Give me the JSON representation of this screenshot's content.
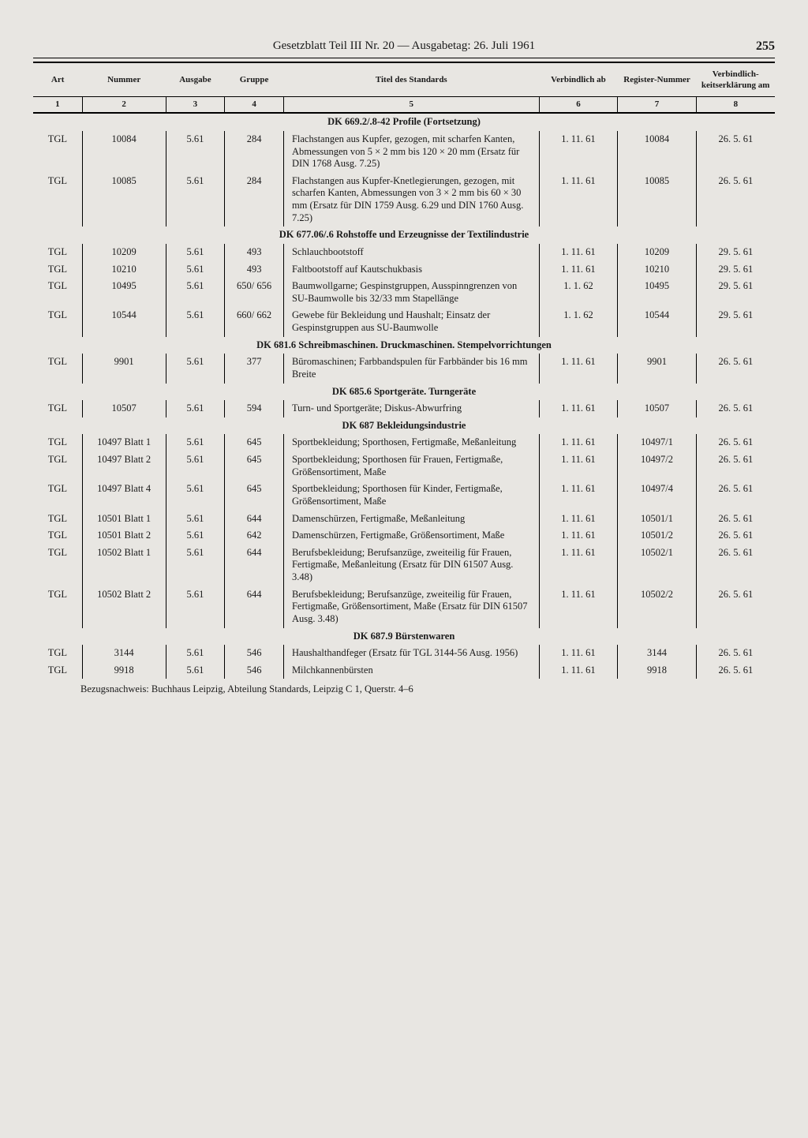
{
  "header": {
    "title": "Gesetzblatt Teil III Nr. 20 — Ausgabetag: 26. Juli 1961",
    "page_number": "255"
  },
  "columns": {
    "h1": "Art",
    "h2": "Nummer",
    "h3": "Ausgabe",
    "h4": "Gruppe",
    "h5": "Titel des Standards",
    "h6": "Verbindlich ab",
    "h7": "Register-Nummer",
    "h8": "Verbindlich-keitserklärung am",
    "n1": "1",
    "n2": "2",
    "n3": "3",
    "n4": "4",
    "n5": "5",
    "n6": "6",
    "n7": "7",
    "n8": "8"
  },
  "sections": [
    {
      "heading": "DK 669.2/.8-42 Profile (Fortsetzung)",
      "rows": [
        {
          "art": "TGL",
          "num": "10084",
          "ausg": "5.61",
          "grp": "284",
          "title": "Flachstangen aus Kupfer, gezogen, mit scharfen Kanten, Abmessungen von 5 × 2 mm bis 120 × 20 mm (Ersatz für DIN 1768 Ausg. 7.25)",
          "verb": "1. 11. 61",
          "reg": "10084",
          "am": "26. 5. 61"
        },
        {
          "art": "TGL",
          "num": "10085",
          "ausg": "5.61",
          "grp": "284",
          "title": "Flachstangen aus Kupfer-Knetlegierungen, gezogen, mit scharfen Kanten, Abmessungen von 3 × 2 mm bis 60 × 30 mm (Ersatz für DIN 1759 Ausg. 6.29 und DIN 1760 Ausg. 7.25)",
          "verb": "1. 11. 61",
          "reg": "10085",
          "am": "26. 5. 61"
        }
      ]
    },
    {
      "heading": "DK 677.06/.6 Rohstoffe und Erzeugnisse der Textilindustrie",
      "rows": [
        {
          "art": "TGL",
          "num": "10209",
          "ausg": "5.61",
          "grp": "493",
          "title": "Schlauchbootstoff",
          "verb": "1. 11. 61",
          "reg": "10209",
          "am": "29. 5. 61"
        },
        {
          "art": "TGL",
          "num": "10210",
          "ausg": "5.61",
          "grp": "493",
          "title": "Faltbootstoff auf Kautschukbasis",
          "verb": "1. 11. 61",
          "reg": "10210",
          "am": "29. 5. 61"
        },
        {
          "art": "TGL",
          "num": "10495",
          "ausg": "5.61",
          "grp": "650/ 656",
          "title": "Baumwollgarne; Gespinstgruppen, Ausspinngrenzen von SU-Baumwolle bis 32/33 mm Stapellänge",
          "verb": "1. 1. 62",
          "reg": "10495",
          "am": "29. 5. 61"
        },
        {
          "art": "TGL",
          "num": "10544",
          "ausg": "5.61",
          "grp": "660/ 662",
          "title": "Gewebe für Bekleidung und Haushalt; Einsatz der Gespinstgruppen aus SU-Baumwolle",
          "verb": "1. 1. 62",
          "reg": "10544",
          "am": "29. 5. 61"
        }
      ]
    },
    {
      "heading": "DK 681.6 Schreibmaschinen. Druckmaschinen. Stempelvorrichtungen",
      "rows": [
        {
          "art": "TGL",
          "num": "9901",
          "ausg": "5.61",
          "grp": "377",
          "title": "Büromaschinen; Farbbandspulen für Farbbänder bis 16 mm Breite",
          "verb": "1. 11. 61",
          "reg": "9901",
          "am": "26. 5. 61"
        }
      ]
    },
    {
      "heading": "DK 685.6 Sportgeräte. Turngeräte",
      "rows": [
        {
          "art": "TGL",
          "num": "10507",
          "ausg": "5.61",
          "grp": "594",
          "title": "Turn- und Sportgeräte; Diskus-Abwurfring",
          "verb": "1. 11. 61",
          "reg": "10507",
          "am": "26. 5. 61"
        }
      ]
    },
    {
      "heading": "DK 687 Bekleidungsindustrie",
      "rows": [
        {
          "art": "TGL",
          "num": "10497 Blatt 1",
          "ausg": "5.61",
          "grp": "645",
          "title": "Sportbekleidung; Sporthosen, Fertigmaße, Meßanleitung",
          "verb": "1. 11. 61",
          "reg": "10497/1",
          "am": "26. 5. 61"
        },
        {
          "art": "TGL",
          "num": "10497 Blatt 2",
          "ausg": "5.61",
          "grp": "645",
          "title": "Sportbekleidung; Sporthosen für Frauen, Fertigmaße, Größensortiment, Maße",
          "verb": "1. 11. 61",
          "reg": "10497/2",
          "am": "26. 5. 61"
        },
        {
          "art": "TGL",
          "num": "10497 Blatt 4",
          "ausg": "5.61",
          "grp": "645",
          "title": "Sportbekleidung; Sporthosen für Kinder, Fertigmaße, Größensortiment, Maße",
          "verb": "1. 11. 61",
          "reg": "10497/4",
          "am": "26. 5. 61"
        },
        {
          "art": "TGL",
          "num": "10501 Blatt 1",
          "ausg": "5.61",
          "grp": "644",
          "title": "Damenschürzen, Fertigmaße, Meßanleitung",
          "verb": "1. 11. 61",
          "reg": "10501/1",
          "am": "26. 5. 61"
        },
        {
          "art": "TGL",
          "num": "10501 Blatt 2",
          "ausg": "5.61",
          "grp": "642",
          "title": "Damenschürzen, Fertigmaße, Größensortiment, Maße",
          "verb": "1. 11. 61",
          "reg": "10501/2",
          "am": "26. 5. 61"
        },
        {
          "art": "TGL",
          "num": "10502 Blatt 1",
          "ausg": "5.61",
          "grp": "644",
          "title": "Berufsbekleidung; Berufsanzüge, zweiteilig für Frauen, Fertigmaße, Meßanleitung (Ersatz für DIN 61507 Ausg. 3.48)",
          "verb": "1. 11. 61",
          "reg": "10502/1",
          "am": "26. 5. 61"
        },
        {
          "art": "TGL",
          "num": "10502 Blatt 2",
          "ausg": "5.61",
          "grp": "644",
          "title": "Berufsbekleidung; Berufsanzüge, zweiteilig für Frauen, Fertigmaße, Größensortiment, Maße (Ersatz für DIN 61507 Ausg. 3.48)",
          "verb": "1. 11. 61",
          "reg": "10502/2",
          "am": "26. 5. 61"
        }
      ]
    },
    {
      "heading": "DK 687.9 Bürstenwaren",
      "rows": [
        {
          "art": "TGL",
          "num": "3144",
          "ausg": "5.61",
          "grp": "546",
          "title": "Haushalthandfeger (Ersatz für TGL 3144-56 Ausg. 1956)",
          "verb": "1. 11. 61",
          "reg": "3144",
          "am": "26. 5. 61"
        },
        {
          "art": "TGL",
          "num": "9918",
          "ausg": "5.61",
          "grp": "546",
          "title": "Milchkannenbürsten",
          "verb": "1. 11. 61",
          "reg": "9918",
          "am": "26. 5. 61"
        }
      ]
    }
  ],
  "footer": "Bezugsnachweis: Buchhaus Leipzig, Abteilung Standards, Leipzig C 1, Querstr. 4–6"
}
